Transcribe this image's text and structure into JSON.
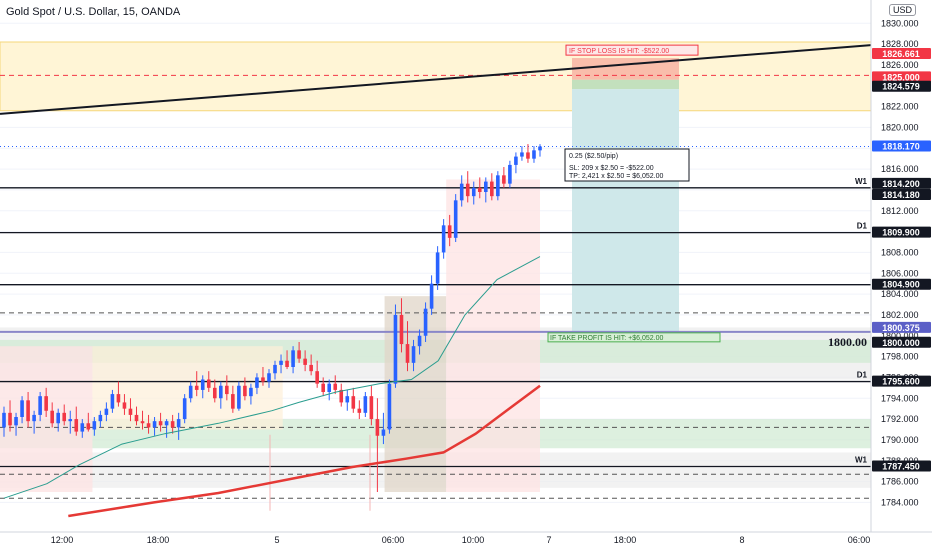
{
  "chart": {
    "title": "Gold Spot / U.S. Dollar, 15, OANDA",
    "currency": "USD"
  },
  "chart_data": {
    "type": "candlestick",
    "symbol": "Gold Spot / U.S. Dollar",
    "interval": "15",
    "source": "OANDA",
    "ylim": [
      1782.6,
      1830.6
    ],
    "y_ticks": [
      1784,
      1786,
      1788,
      1790,
      1792,
      1794,
      1796,
      1798,
      1800,
      1802,
      1804,
      1806,
      1808,
      1810,
      1812,
      1814,
      1816,
      1818,
      1820,
      1822,
      1824,
      1826,
      1828,
      1830
    ],
    "y_tick_labels": [
      "1784.000",
      "1786.000",
      "1788.000",
      "1790.000",
      "1792.000",
      "1794.000",
      "1796.000",
      "1798.000",
      "1800.000",
      "1802.000",
      "1804.000",
      "1806.000",
      "1808.000",
      "1810.000",
      "1812.000",
      "1814.000",
      "1816.000",
      "1818.000",
      "1820.000",
      "1822.000",
      "1824.000",
      "1826.000",
      "1828.000",
      "1830.000"
    ],
    "x_labels": [
      "12:00",
      "18:00",
      "5",
      "06:00",
      "10:00",
      "7",
      "18:00",
      "8",
      "06:00"
    ],
    "up_color": "#2962ff",
    "down_color": "#f23645",
    "price_badges": [
      {
        "value": "1826.661",
        "bg": "#f23645",
        "fg": "#ffffff"
      },
      {
        "value": "1825.000",
        "bg": "#f23645",
        "fg": "#ffffff"
      },
      {
        "value": "1824.579",
        "bg": "#131722",
        "fg": "#ffffff"
      },
      {
        "value": "1818.170",
        "bg": "#2962ff",
        "fg": "#ffffff"
      },
      {
        "value": "1814.200",
        "bg": "#131722",
        "fg": "#ffffff"
      },
      {
        "value": "1814.180",
        "bg": "#131722",
        "fg": "#ffffff"
      },
      {
        "value": "1809.900",
        "bg": "#131722",
        "fg": "#ffffff"
      },
      {
        "value": "1804.900",
        "bg": "#131722",
        "fg": "#ffffff"
      },
      {
        "value": "1800.375",
        "bg": "#5b5fc7",
        "fg": "#ffffff"
      },
      {
        "value": "1800.000",
        "bg": "#131722",
        "fg": "#ffffff"
      },
      {
        "value": "1795.600",
        "bg": "#131722",
        "fg": "#ffffff"
      },
      {
        "value": "1787.450",
        "bg": "#131722",
        "fg": "#ffffff"
      }
    ],
    "level_lines": [
      {
        "value": 1814.2,
        "label": "W1"
      },
      {
        "value": 1809.9,
        "label": "D1"
      },
      {
        "value": 1804.9,
        "label": ""
      },
      {
        "value": 1795.6,
        "label": "D1"
      },
      {
        "value": 1787.45,
        "label": "W1"
      }
    ],
    "dashed_levels": [
      1825.0,
      1802.2,
      1791.2,
      1786.7,
      1784.4
    ],
    "key_level_text": "1800.00",
    "key_level_value": 1800.375,
    "position": {
      "entry": 1824.579,
      "stop": 1826.661,
      "target": 1800.375,
      "stop_text": "IF STOP LOSS IS HIT: -$522.00",
      "tp_text": "IF TAKE PROFIT IS HIT: +$6,052.00",
      "info_lines": [
        "0.25 ($2.50/pip)",
        "SL: 209 x $2.50 = -$522.00",
        "TP: 2,421 x $2.50 = $6,052.00"
      ]
    },
    "candles": [
      {
        "o": 1791.2,
        "h": 1793.2,
        "l": 1790.3,
        "c": 1792.6
      },
      {
        "o": 1792.6,
        "h": 1793.8,
        "l": 1790.8,
        "c": 1791.4
      },
      {
        "o": 1791.4,
        "h": 1792.6,
        "l": 1790.4,
        "c": 1792.2
      },
      {
        "o": 1792.2,
        "h": 1794.2,
        "l": 1791.6,
        "c": 1793.8
      },
      {
        "o": 1793.8,
        "h": 1794.6,
        "l": 1791.2,
        "c": 1791.8
      },
      {
        "o": 1791.8,
        "h": 1792.8,
        "l": 1790.6,
        "c": 1792.4
      },
      {
        "o": 1792.4,
        "h": 1794.6,
        "l": 1791.8,
        "c": 1794.2
      },
      {
        "o": 1794.2,
        "h": 1795.0,
        "l": 1792.2,
        "c": 1792.8
      },
      {
        "o": 1792.8,
        "h": 1793.6,
        "l": 1791.2,
        "c": 1791.6
      },
      {
        "o": 1791.6,
        "h": 1793.0,
        "l": 1790.8,
        "c": 1792.6
      },
      {
        "o": 1792.6,
        "h": 1793.4,
        "l": 1791.4,
        "c": 1791.8
      },
      {
        "o": 1791.8,
        "h": 1792.8,
        "l": 1790.6,
        "c": 1792.0
      },
      {
        "o": 1792.0,
        "h": 1793.2,
        "l": 1790.4,
        "c": 1790.8
      },
      {
        "o": 1790.8,
        "h": 1792.0,
        "l": 1790.2,
        "c": 1791.6
      },
      {
        "o": 1791.6,
        "h": 1792.6,
        "l": 1790.8,
        "c": 1791.0
      },
      {
        "o": 1791.0,
        "h": 1792.2,
        "l": 1790.4,
        "c": 1791.8
      },
      {
        "o": 1791.8,
        "h": 1792.8,
        "l": 1791.2,
        "c": 1792.4
      },
      {
        "o": 1792.4,
        "h": 1793.6,
        "l": 1791.8,
        "c": 1793.0
      },
      {
        "o": 1793.0,
        "h": 1794.8,
        "l": 1792.6,
        "c": 1794.4
      },
      {
        "o": 1794.4,
        "h": 1795.6,
        "l": 1793.2,
        "c": 1793.6
      },
      {
        "o": 1793.6,
        "h": 1794.4,
        "l": 1792.4,
        "c": 1793.0
      },
      {
        "o": 1793.0,
        "h": 1794.0,
        "l": 1791.8,
        "c": 1792.4
      },
      {
        "o": 1792.4,
        "h": 1793.2,
        "l": 1791.4,
        "c": 1791.8
      },
      {
        "o": 1791.8,
        "h": 1792.8,
        "l": 1791.0,
        "c": 1791.6
      },
      {
        "o": 1791.6,
        "h": 1792.4,
        "l": 1790.6,
        "c": 1791.2
      },
      {
        "o": 1791.2,
        "h": 1792.2,
        "l": 1790.4,
        "c": 1791.8
      },
      {
        "o": 1791.8,
        "h": 1792.6,
        "l": 1790.8,
        "c": 1791.4
      },
      {
        "o": 1791.4,
        "h": 1792.0,
        "l": 1790.2,
        "c": 1791.8
      },
      {
        "o": 1791.8,
        "h": 1792.4,
        "l": 1790.6,
        "c": 1791.2
      },
      {
        "o": 1791.2,
        "h": 1792.6,
        "l": 1790.0,
        "c": 1792.0
      },
      {
        "o": 1792.0,
        "h": 1794.4,
        "l": 1791.6,
        "c": 1794.0
      },
      {
        "o": 1794.0,
        "h": 1795.6,
        "l": 1793.6,
        "c": 1795.2
      },
      {
        "o": 1795.2,
        "h": 1796.6,
        "l": 1794.2,
        "c": 1794.8
      },
      {
        "o": 1794.8,
        "h": 1796.2,
        "l": 1794.0,
        "c": 1795.8
      },
      {
        "o": 1795.8,
        "h": 1796.6,
        "l": 1794.6,
        "c": 1795.0
      },
      {
        "o": 1795.0,
        "h": 1795.8,
        "l": 1793.6,
        "c": 1794.0
      },
      {
        "o": 1794.0,
        "h": 1795.6,
        "l": 1793.0,
        "c": 1795.2
      },
      {
        "o": 1795.2,
        "h": 1796.2,
        "l": 1793.8,
        "c": 1794.4
      },
      {
        "o": 1794.4,
        "h": 1795.2,
        "l": 1792.6,
        "c": 1793.0
      },
      {
        "o": 1793.0,
        "h": 1795.6,
        "l": 1792.8,
        "c": 1795.2
      },
      {
        "o": 1795.2,
        "h": 1796.0,
        "l": 1793.8,
        "c": 1794.2
      },
      {
        "o": 1794.2,
        "h": 1795.4,
        "l": 1793.4,
        "c": 1795.0
      },
      {
        "o": 1795.0,
        "h": 1796.4,
        "l": 1794.4,
        "c": 1796.0
      },
      {
        "o": 1796.0,
        "h": 1797.0,
        "l": 1795.2,
        "c": 1795.6
      },
      {
        "o": 1795.6,
        "h": 1796.8,
        "l": 1795.0,
        "c": 1796.4
      },
      {
        "o": 1796.4,
        "h": 1797.6,
        "l": 1795.8,
        "c": 1797.2
      },
      {
        "o": 1797.2,
        "h": 1798.2,
        "l": 1796.4,
        "c": 1797.6
      },
      {
        "o": 1797.6,
        "h": 1798.6,
        "l": 1796.8,
        "c": 1797.0
      },
      {
        "o": 1797.0,
        "h": 1799.0,
        "l": 1796.4,
        "c": 1798.6
      },
      {
        "o": 1798.6,
        "h": 1799.4,
        "l": 1797.4,
        "c": 1797.8
      },
      {
        "o": 1797.8,
        "h": 1798.6,
        "l": 1796.6,
        "c": 1797.2
      },
      {
        "o": 1797.2,
        "h": 1798.2,
        "l": 1796.2,
        "c": 1796.6
      },
      {
        "o": 1796.6,
        "h": 1797.6,
        "l": 1795.0,
        "c": 1795.4
      },
      {
        "o": 1795.4,
        "h": 1796.0,
        "l": 1794.2,
        "c": 1794.6
      },
      {
        "o": 1794.6,
        "h": 1795.8,
        "l": 1793.8,
        "c": 1795.4
      },
      {
        "o": 1795.4,
        "h": 1796.2,
        "l": 1794.4,
        "c": 1794.8
      },
      {
        "o": 1794.8,
        "h": 1795.4,
        "l": 1793.2,
        "c": 1793.6
      },
      {
        "o": 1793.6,
        "h": 1794.8,
        "l": 1792.8,
        "c": 1794.2
      },
      {
        "o": 1794.2,
        "h": 1795.0,
        "l": 1792.6,
        "c": 1793.0
      },
      {
        "o": 1793.0,
        "h": 1793.8,
        "l": 1792.0,
        "c": 1792.6
      },
      {
        "o": 1792.6,
        "h": 1794.6,
        "l": 1792.2,
        "c": 1794.2
      },
      {
        "o": 1794.2,
        "h": 1795.2,
        "l": 1791.4,
        "c": 1792.0
      },
      {
        "o": 1792.0,
        "h": 1794.0,
        "l": 1785.0,
        "c": 1790.4
      },
      {
        "o": 1790.4,
        "h": 1792.6,
        "l": 1789.6,
        "c": 1791.0
      },
      {
        "o": 1791.0,
        "h": 1795.8,
        "l": 1790.6,
        "c": 1795.4
      },
      {
        "o": 1795.4,
        "h": 1803.0,
        "l": 1795.0,
        "c": 1802.0
      },
      {
        "o": 1802.0,
        "h": 1803.6,
        "l": 1798.4,
        "c": 1799.2
      },
      {
        "o": 1799.2,
        "h": 1801.4,
        "l": 1796.6,
        "c": 1797.4
      },
      {
        "o": 1797.4,
        "h": 1799.6,
        "l": 1796.6,
        "c": 1799.0
      },
      {
        "o": 1799.0,
        "h": 1800.6,
        "l": 1798.2,
        "c": 1800.0
      },
      {
        "o": 1800.0,
        "h": 1803.2,
        "l": 1799.4,
        "c": 1802.6
      },
      {
        "o": 1802.6,
        "h": 1805.8,
        "l": 1802.0,
        "c": 1805.0
      },
      {
        "o": 1805.0,
        "h": 1808.6,
        "l": 1804.4,
        "c": 1808.0
      },
      {
        "o": 1808.0,
        "h": 1811.2,
        "l": 1807.4,
        "c": 1810.6
      },
      {
        "o": 1810.6,
        "h": 1811.6,
        "l": 1808.6,
        "c": 1809.4
      },
      {
        "o": 1809.4,
        "h": 1813.6,
        "l": 1809.0,
        "c": 1813.0
      },
      {
        "o": 1813.0,
        "h": 1815.4,
        "l": 1812.4,
        "c": 1814.6
      },
      {
        "o": 1814.6,
        "h": 1815.8,
        "l": 1812.8,
        "c": 1813.4
      },
      {
        "o": 1813.4,
        "h": 1814.8,
        "l": 1812.6,
        "c": 1814.2
      },
      {
        "o": 1814.2,
        "h": 1815.2,
        "l": 1813.2,
        "c": 1813.8
      },
      {
        "o": 1813.8,
        "h": 1815.2,
        "l": 1812.8,
        "c": 1814.8
      },
      {
        "o": 1814.8,
        "h": 1815.6,
        "l": 1813.0,
        "c": 1813.4
      },
      {
        "o": 1813.4,
        "h": 1815.8,
        "l": 1813.0,
        "c": 1815.4
      },
      {
        "o": 1815.4,
        "h": 1816.2,
        "l": 1814.2,
        "c": 1814.6
      },
      {
        "o": 1814.6,
        "h": 1816.8,
        "l": 1814.2,
        "c": 1816.4
      },
      {
        "o": 1816.4,
        "h": 1817.6,
        "l": 1815.6,
        "c": 1817.2
      },
      {
        "o": 1817.2,
        "h": 1818.2,
        "l": 1816.8,
        "c": 1817.6
      },
      {
        "o": 1817.6,
        "h": 1818.4,
        "l": 1816.6,
        "c": 1817.0
      },
      {
        "o": 1817.0,
        "h": 1818.2,
        "l": 1816.6,
        "c": 1817.8
      },
      {
        "o": 1817.8,
        "h": 1818.4,
        "l": 1817.2,
        "c": 1818.17
      }
    ],
    "ema_fast": [
      [
        0,
        1784.4
      ],
      [
        0.08,
        1785.8
      ],
      [
        0.14,
        1787.6
      ],
      [
        0.22,
        1789.6
      ],
      [
        0.3,
        1790.6
      ],
      [
        0.4,
        1791.6
      ],
      [
        0.5,
        1792.8
      ],
      [
        0.55,
        1793.6
      ],
      [
        0.62,
        1794.6
      ],
      [
        0.7,
        1795.4
      ],
      [
        0.76,
        1795.8
      ],
      [
        0.81,
        1797.6
      ],
      [
        0.86,
        1802.0
      ],
      [
        0.92,
        1805.4
      ],
      [
        1.0,
        1807.6
      ]
    ],
    "ema_slow": [
      [
        0.12,
        1782.7
      ],
      [
        0.28,
        1784.0
      ],
      [
        0.4,
        1784.9
      ],
      [
        0.55,
        1786.4
      ],
      [
        0.65,
        1787.4
      ],
      [
        0.75,
        1788.2
      ],
      [
        0.82,
        1788.8
      ],
      [
        0.88,
        1790.6
      ],
      [
        1.0,
        1795.2
      ]
    ]
  }
}
